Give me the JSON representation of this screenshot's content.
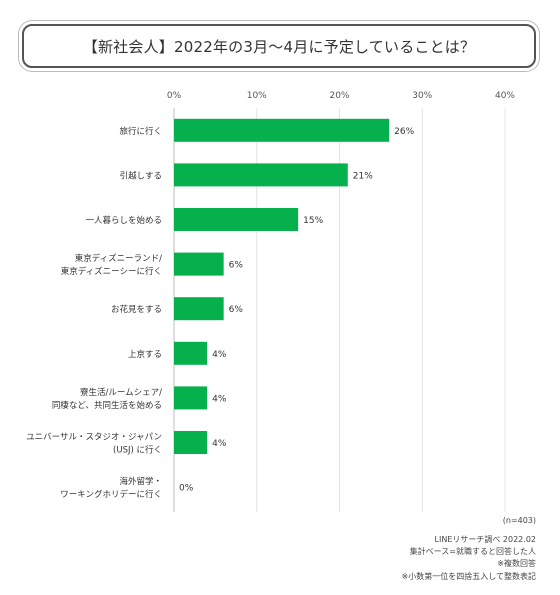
{
  "title": "【新社会人】2022年の3月〜4月に予定していることは？",
  "chart_data": {
    "type": "bar",
    "orientation": "horizontal",
    "categories": [
      [
        "旅行に行く"
      ],
      [
        "引越しする"
      ],
      [
        "一人暮らしを始める"
      ],
      [
        "東京ディズニーランド/",
        "東京ディズニーシーに行く"
      ],
      [
        "お花見をする"
      ],
      [
        "上京する"
      ],
      [
        "寮生活/ルームシェア/",
        "同棲など、共同生活を始める"
      ],
      [
        "ユニバーサル・スタジオ・ジャパン",
        "(USJ) に行く"
      ],
      [
        "海外留学・",
        "ワーキングホリデーに行く"
      ]
    ],
    "values": [
      26,
      21,
      15,
      6,
      6,
      4,
      4,
      4,
      0
    ],
    "value_labels": [
      "26%",
      "21%",
      "15%",
      "6%",
      "6%",
      "4%",
      "4%",
      "4%",
      "0%"
    ],
    "xlim": [
      0,
      40
    ],
    "ticks": [
      0,
      10,
      20,
      30,
      40
    ],
    "tick_labels": [
      "0%",
      "10%",
      "20%",
      "30%",
      "40%"
    ],
    "bar_color": "#06b04c",
    "grid": true
  },
  "notes": {
    "sample": "(n=403)",
    "source": "LINEリサーチ調べ 2022.02",
    "base": "集計ベース=就職すると回答した人",
    "multi": "※複数回答",
    "rounding": "※小数第一位を四捨五入して整数表記"
  }
}
